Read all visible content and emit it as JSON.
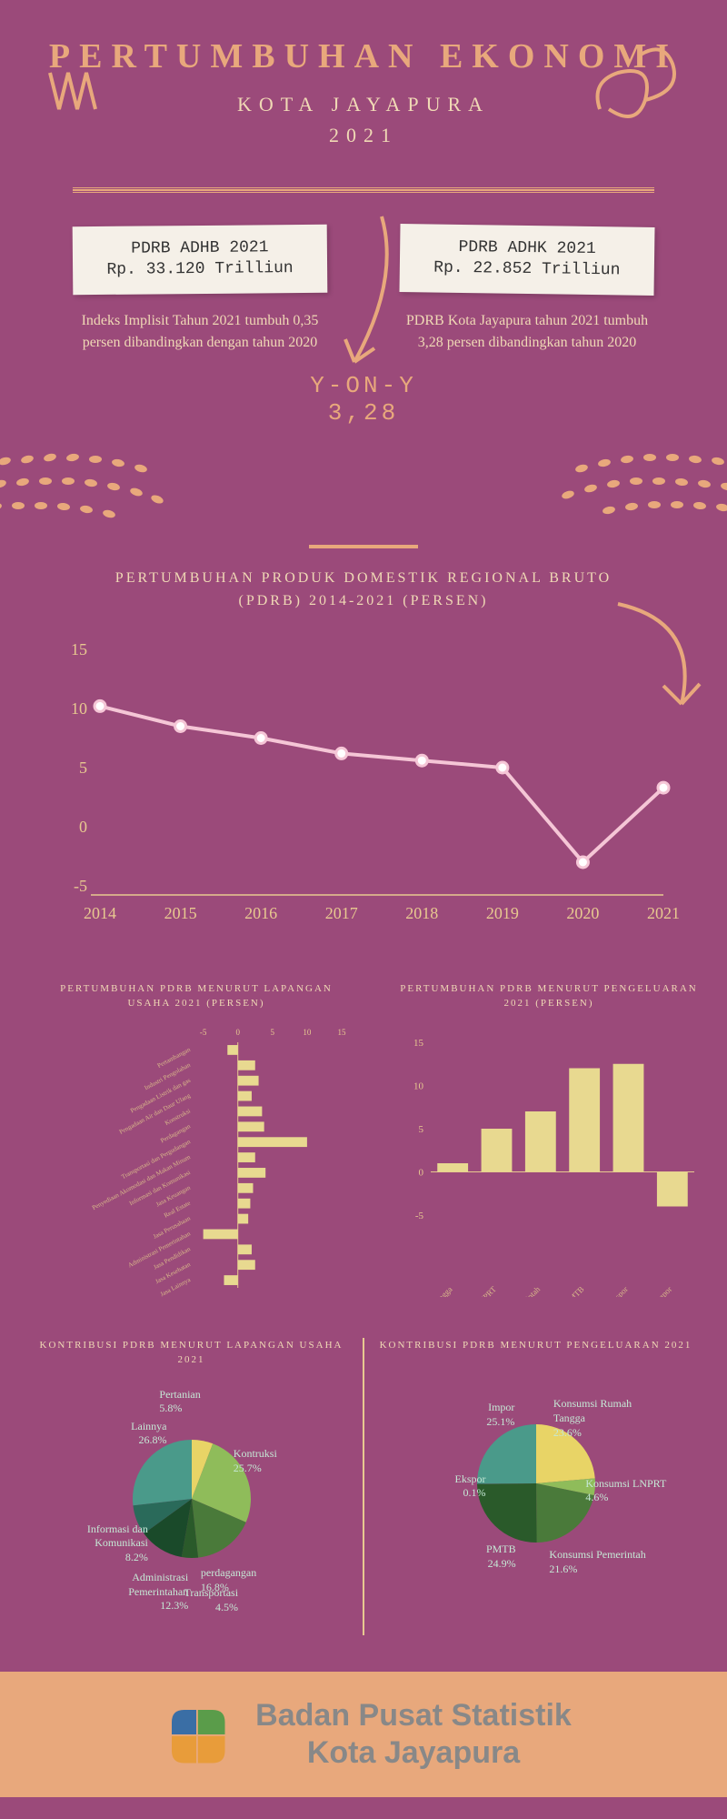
{
  "header": {
    "title": "PERTUMBUHAN EKONOMI",
    "subtitle1": "KOTA JAYAPURA",
    "subtitle2": "2021"
  },
  "stats": {
    "left_box_line1": "PDRB ADHB 2021",
    "left_box_line2": "Rp. 33.120 Trilliun",
    "left_desc": "Indeks Implisit Tahun 2021 tumbuh 0,35 persen dibandingkan dengan tahun 2020",
    "right_box_line1": "PDRB ADHK 2021",
    "right_box_line2": "Rp. 22.852 Trilliun",
    "right_desc": "PDRB Kota Jayapura tahun 2021 tumbuh 3,28 persen dibandingkan tahun 2020",
    "yoy_label": "Y-ON-Y",
    "yoy_value": "3,28"
  },
  "linechart": {
    "title": "PERTUMBUHAN PRODUK DOMESTIK REGIONAL BRUTO (PDRB) 2014-2021 (PERSEN)",
    "years": [
      "2014",
      "2015",
      "2016",
      "2017",
      "2018",
      "2019",
      "2020",
      "2021"
    ],
    "values": [
      10.2,
      8.5,
      7.5,
      6.2,
      5.6,
      5.0,
      -3.0,
      3.3
    ],
    "ytick_labels": [
      "-5",
      "0",
      "5",
      "10",
      "15"
    ],
    "ytick_values": [
      -5,
      0,
      5,
      10,
      15
    ],
    "ylim": [
      -5,
      15
    ],
    "line_color": "#f5c6d6",
    "marker_fill": "#ffffff",
    "axis_color": "#e8c990"
  },
  "hbar": {
    "title": "PERTUMBUHAN PDRB MENURUT LAPANGAN USAHA 2021 (PERSEN)",
    "categories": [
      "Pertambangan",
      "Industri Pengolahan",
      "Pengadaan Listrik dan gas",
      "Pengadaan Air dan Daur Ulang",
      "Konstruksi",
      "Perdagangan",
      "Transportasi dan Pergudangan",
      "Penyediaan Akomodasi dan Makan Minum",
      "Informasi dan Komunikasi",
      "Jasa Keuangan",
      "Real Estate",
      "Jasa Perusahaan",
      "Administrasi Pemerintahan",
      "Jasa Pendidikan",
      "Jasa Kesehatan",
      "Jasa Lainnya"
    ],
    "values": [
      -1.5,
      2.5,
      3.0,
      2.0,
      3.5,
      3.8,
      10.0,
      2.5,
      4.0,
      2.2,
      1.8,
      1.5,
      -5.0,
      2.0,
      2.5,
      -2.0
    ],
    "xtick_labels": [
      "-5",
      "0",
      "5",
      "10",
      "15"
    ],
    "xlim": [
      -6,
      15
    ],
    "bar_color": "#e8d990",
    "axis_color": "#e8c990",
    "label_color": "#d9b88a",
    "label_fontsize": 7
  },
  "vbar": {
    "title": "PERTUMBUHAN PDRB MENURUT PENGELUARAN 2021 (PERSEN)",
    "categories": [
      "Konsumsi Rumah Tangga",
      "Konsumsi LNPRT",
      "Konsumsi Pemerintah",
      "PMTB",
      "Ekspor",
      "Impor"
    ],
    "values": [
      1.0,
      5.0,
      7.0,
      12.0,
      12.5,
      -4.0
    ],
    "ytick_labels": [
      "-5",
      "0",
      "5",
      "10",
      "15"
    ],
    "ylim": [
      -5,
      15
    ],
    "bar_color": "#e8d990",
    "axis_color": "#e8c990",
    "label_color": "#d9b88a"
  },
  "pie1": {
    "title": "KONTRIBUSI PDRB MENURUT LAPANGAN USAHA 2021",
    "slices": [
      {
        "label": "Pertanian",
        "pct": "5.8%",
        "value": 5.8,
        "color": "#e8d466"
      },
      {
        "label": "Kontruksi",
        "pct": "25.7%",
        "value": 25.7,
        "color": "#8fbc5a"
      },
      {
        "label": "perdagangan",
        "pct": "16.8%",
        "value": 16.8,
        "color": "#4a7a3a"
      },
      {
        "label": "Transportasi",
        "pct": "4.5%",
        "value": 4.5,
        "color": "#2a5a2a"
      },
      {
        "label": "Administrasi Pemerintahan",
        "pct": "12.3%",
        "value": 12.3,
        "color": "#1a4a2a"
      },
      {
        "label": "Informasi dan Komunikasi",
        "pct": "8.2%",
        "value": 8.2,
        "color": "#2a6a5a"
      },
      {
        "label": "Lainnya",
        "pct": "26.8%",
        "value": 26.8,
        "color": "#4a9a8a"
      }
    ]
  },
  "pie2": {
    "title": "KONTRIBUSI PDRB MENURUT PENGELUARAN 2021",
    "slices": [
      {
        "label": "Konsumsi Rumah Tangga",
        "pct": "23.6%",
        "value": 23.6,
        "color": "#e8d466"
      },
      {
        "label": "Konsumsi LNPRT",
        "pct": "4.6%",
        "value": 4.6,
        "color": "#8fbc5a"
      },
      {
        "label": "Konsumsi Pemerintah",
        "pct": "21.6%",
        "value": 21.6,
        "color": "#4a7a3a"
      },
      {
        "label": "PMTB",
        "pct": "24.9%",
        "value": 24.9,
        "color": "#2a5a2a"
      },
      {
        "label": "Ekspor",
        "pct": "0.1%",
        "value": 0.1,
        "color": "#1a4a2a"
      },
      {
        "label": "Impor",
        "pct": "25.1%",
        "value": 25.1,
        "color": "#4a9a8a"
      }
    ]
  },
  "footer": {
    "line1": "Badan Pusat Statistik",
    "line2": "Kota Jayapura"
  },
  "colors": {
    "bg": "#9b4a7a",
    "accent": "#e8a87c",
    "text": "#f0d9b5",
    "paper": "#f5f0e8"
  }
}
